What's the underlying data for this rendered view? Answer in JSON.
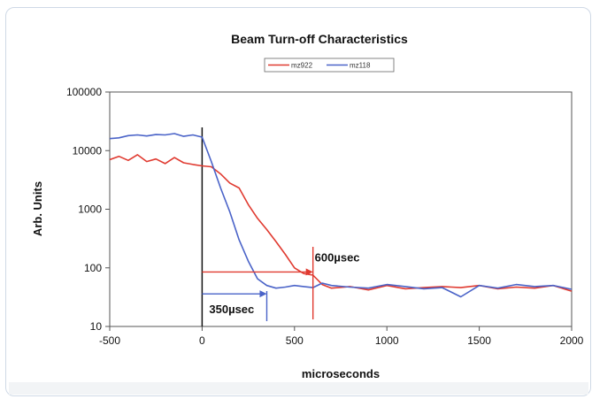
{
  "chart_data": {
    "type": "line",
    "title": "Beam Turn-off Characteristics",
    "xlabel": "microseconds",
    "ylabel": "Arb. Units",
    "xlim": [
      -500,
      2000
    ],
    "ylim": [
      10,
      100000
    ],
    "yscale": "log",
    "xticks": [
      "-500",
      "0",
      "500",
      "1000",
      "1500",
      "2000"
    ],
    "yticks": [
      "10",
      "100",
      "1000",
      "10000",
      "100000"
    ],
    "grid": false,
    "legend_position": "top-center",
    "series": [
      {
        "name": "mz922",
        "color": "#e03a30",
        "x": [
          -500,
          -450,
          -400,
          -350,
          -300,
          -250,
          -200,
          -150,
          -100,
          -50,
          0,
          50,
          100,
          150,
          200,
          250,
          300,
          350,
          400,
          450,
          500,
          550,
          600,
          650,
          700,
          800,
          900,
          1000,
          1100,
          1200,
          1300,
          1400,
          1500,
          1600,
          1700,
          1800,
          1900,
          2000
        ],
        "y": [
          7000,
          8000,
          6800,
          8500,
          6500,
          7200,
          6000,
          7600,
          6200,
          5800,
          5500,
          5300,
          4000,
          2800,
          2300,
          1200,
          700,
          450,
          280,
          170,
          100,
          80,
          75,
          52,
          45,
          48,
          42,
          50,
          44,
          46,
          48,
          46,
          50,
          44,
          47,
          45,
          50,
          40
        ]
      },
      {
        "name": "mz118",
        "color": "#4a63c8",
        "x": [
          -500,
          -450,
          -400,
          -350,
          -300,
          -250,
          -200,
          -150,
          -100,
          -50,
          0,
          50,
          100,
          150,
          200,
          250,
          300,
          350,
          400,
          450,
          500,
          550,
          600,
          650,
          700,
          800,
          900,
          1000,
          1100,
          1200,
          1300,
          1400,
          1500,
          1600,
          1700,
          1800,
          1900,
          2000
        ],
        "y": [
          16000,
          16500,
          18000,
          18500,
          17800,
          18800,
          18500,
          19500,
          17500,
          18500,
          17000,
          6500,
          2300,
          900,
          300,
          130,
          65,
          50,
          45,
          47,
          50,
          48,
          46,
          55,
          50,
          47,
          45,
          52,
          48,
          44,
          46,
          32,
          50,
          45,
          52,
          48,
          50,
          43
        ]
      }
    ],
    "annotations": [
      {
        "text": "600µsec",
        "x": 600
      },
      {
        "text": "350µsec",
        "x": 350
      }
    ]
  }
}
